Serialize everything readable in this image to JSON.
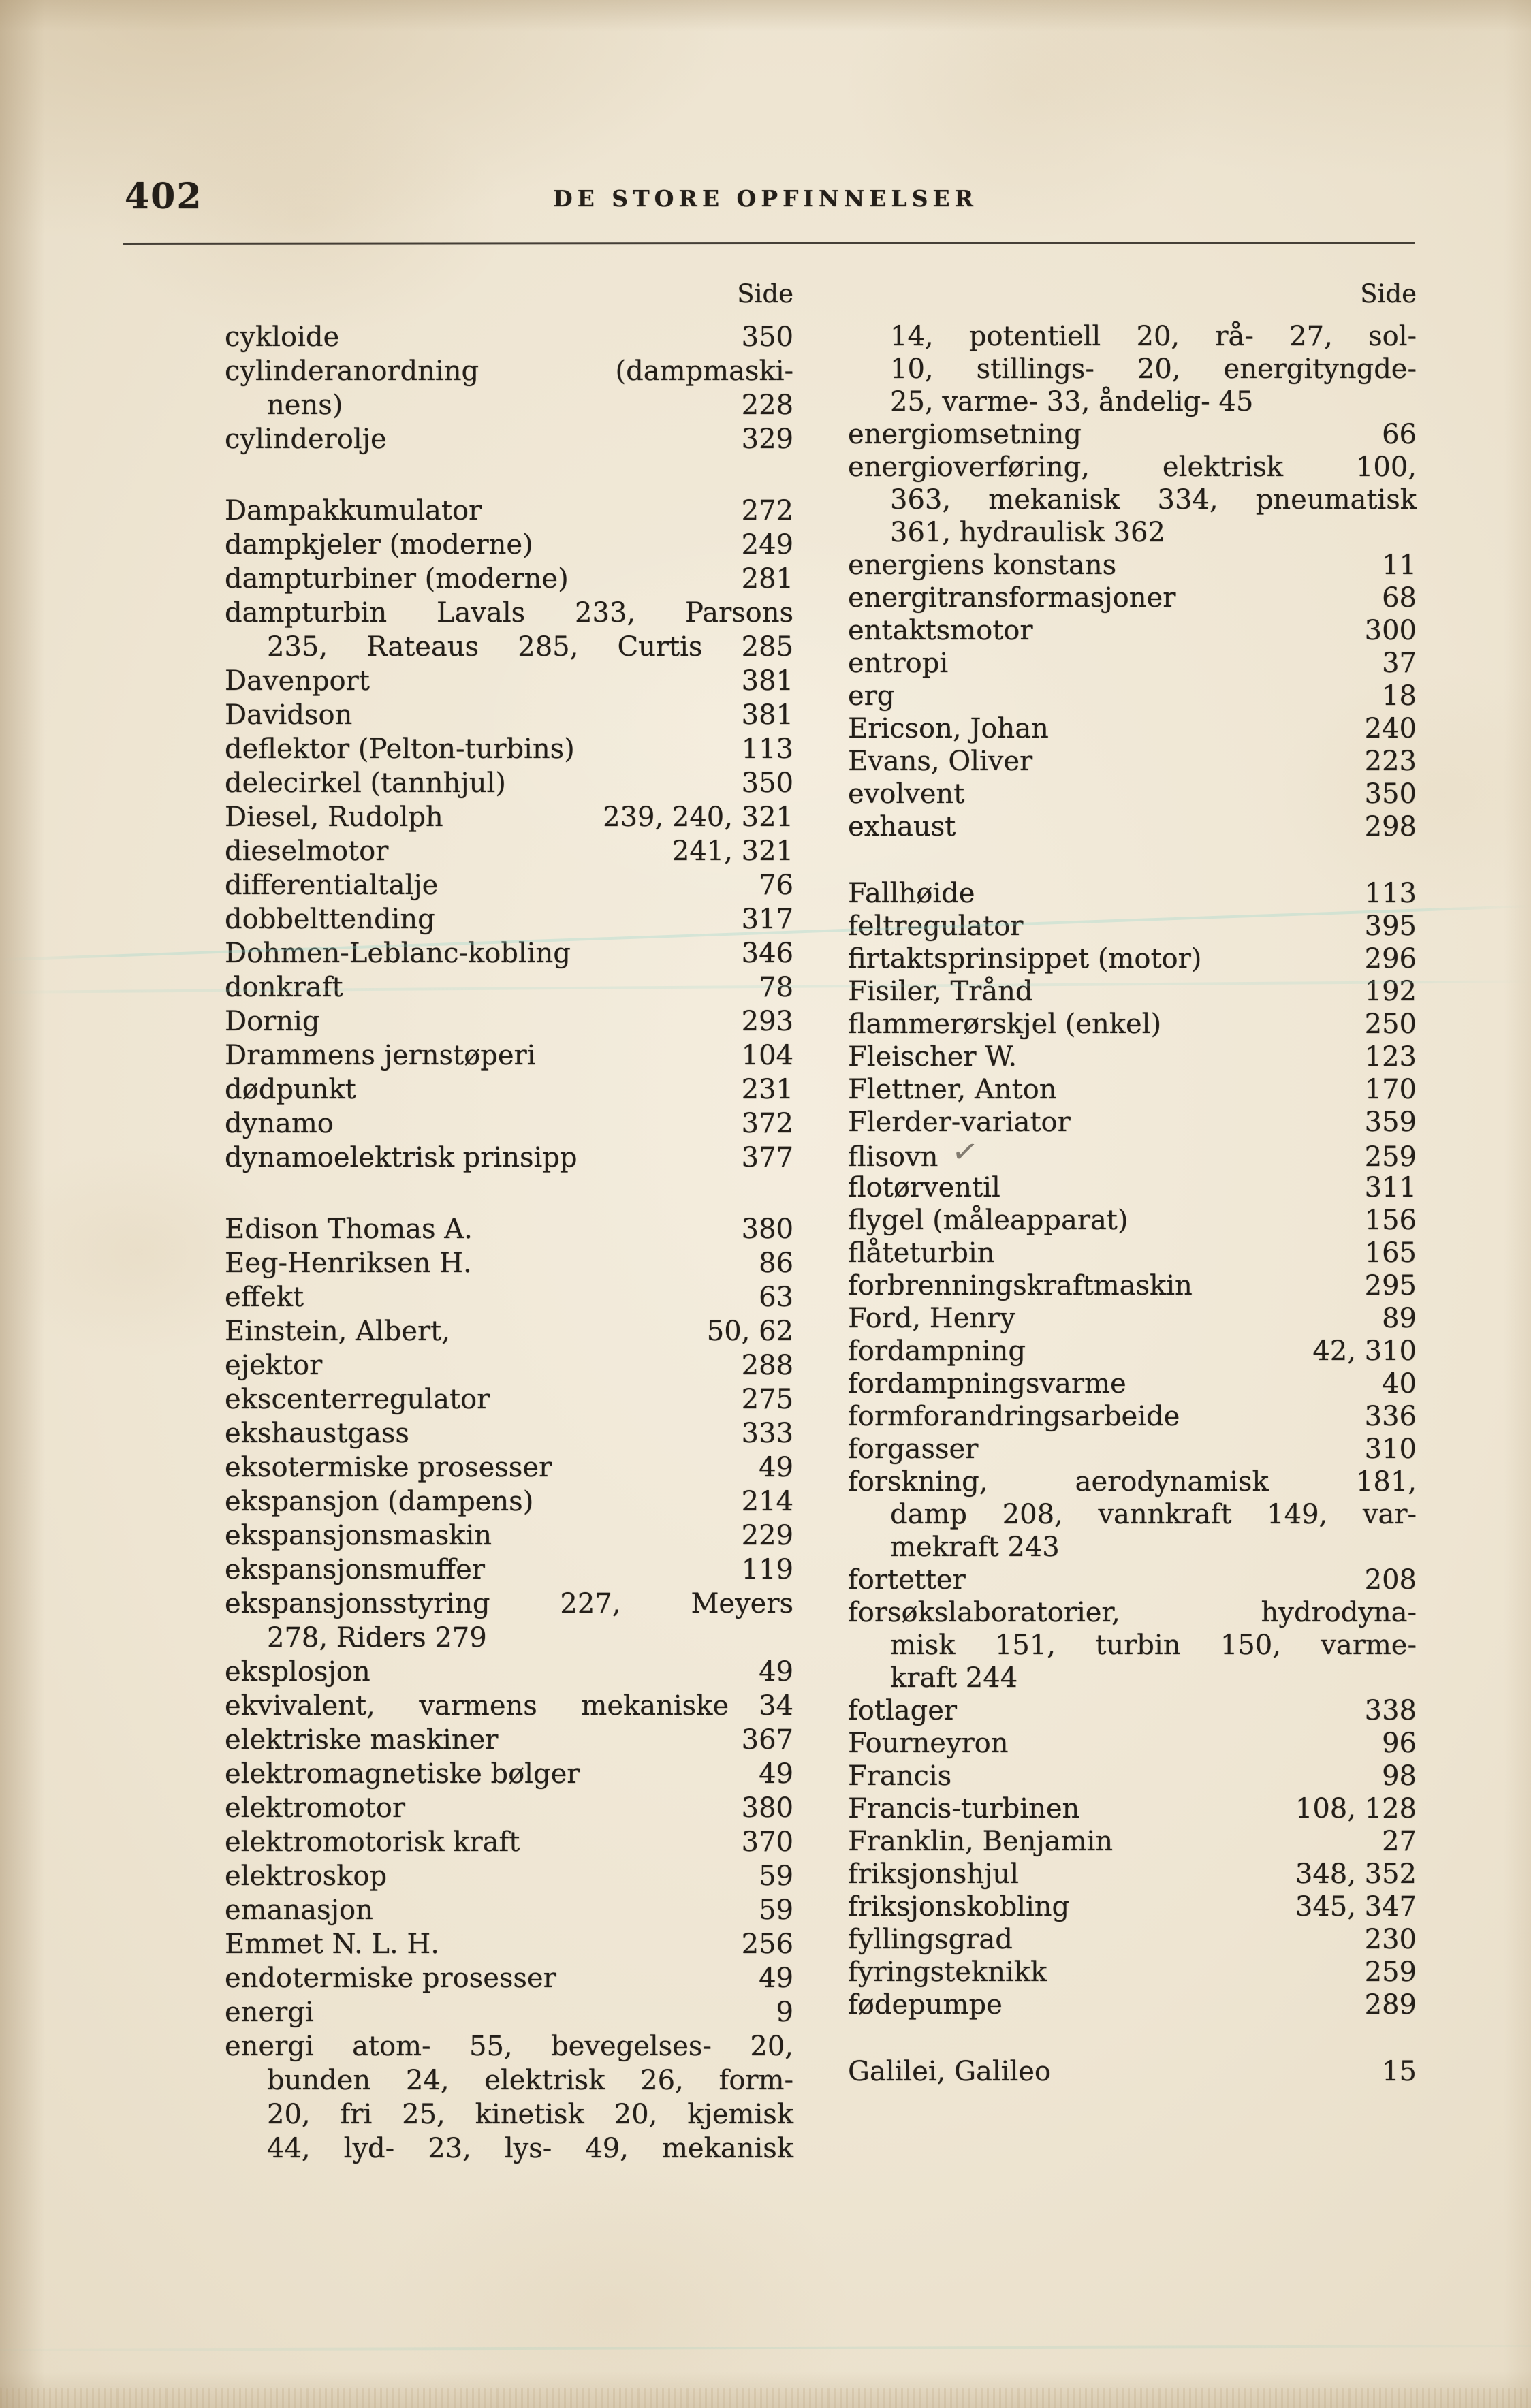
{
  "page": {
    "number": "402",
    "header": "DE STORE OPFINNELSER",
    "column_header": "Side"
  },
  "artifacts": {
    "pen_mark": "✓"
  },
  "colors": {
    "paper": "#eee5d2",
    "ink": "#241f19",
    "scan_line": "#94d6cb"
  },
  "columns": {
    "left": [
      {
        "t": "cykloide",
        "p": "350"
      },
      {
        "t": "cylinderanordning (dampmaski-",
        "f": true
      },
      {
        "t": "nens)",
        "p": "228",
        "i": true
      },
      {
        "t": "cylinderolje",
        "p": "329"
      },
      {
        "t": "Dampakkumulator",
        "p": "272",
        "g": true
      },
      {
        "t": "dampkjeler (moderne)",
        "p": "249"
      },
      {
        "t": "dampturbiner (moderne)",
        "p": "281"
      },
      {
        "t": "dampturbin Lavals 233, Parsons",
        "f": true
      },
      {
        "t": "235, Rateaus 285, Curtis 285",
        "i": true,
        "f": true
      },
      {
        "t": "Davenport",
        "p": "381"
      },
      {
        "t": "Davidson",
        "p": "381"
      },
      {
        "t": "deflektor (Pelton-turbins)",
        "p": "113"
      },
      {
        "t": "delecirkel (tannhjul)",
        "p": "350"
      },
      {
        "t": "Diesel, Rudolph",
        "p": "239, 240, 321"
      },
      {
        "t": "dieselmotor",
        "p": "241, 321"
      },
      {
        "t": "differentialtalje",
        "p": "76"
      },
      {
        "t": "dobbelttending",
        "p": "317"
      },
      {
        "t": "Dohmen-Leblanc-kobling",
        "p": "346"
      },
      {
        "t": "donkraft",
        "p": "78"
      },
      {
        "t": "Dornig",
        "p": "293"
      },
      {
        "t": "Drammens jernstøperi",
        "p": "104"
      },
      {
        "t": "dødpunkt",
        "p": "231"
      },
      {
        "t": "dynamo",
        "p": "372"
      },
      {
        "t": "dynamoelektrisk prinsipp",
        "p": "377"
      },
      {
        "t": "Edison Thomas A.",
        "p": "380",
        "g": true
      },
      {
        "t": "Eeg-Henriksen H.",
        "p": "86"
      },
      {
        "t": "effekt",
        "p": "63"
      },
      {
        "t": "Einstein, Albert,",
        "p": "50, 62"
      },
      {
        "t": "ejektor",
        "p": "288"
      },
      {
        "t": "ekscenterregulator",
        "p": "275"
      },
      {
        "t": "ekshaustgass",
        "p": "333"
      },
      {
        "t": "eksotermiske prosesser",
        "p": "49"
      },
      {
        "t": "ekspansjon (dampens)",
        "p": "214"
      },
      {
        "t": "ekspansjonsmaskin",
        "p": "229"
      },
      {
        "t": "ekspansjonsmuffer",
        "p": "119"
      },
      {
        "t": "ekspansjonsstyring 227, Meyers",
        "f": true
      },
      {
        "t": "278, Riders 279",
        "i": true
      },
      {
        "t": "eksplosjon",
        "p": "49"
      },
      {
        "t": "ekvivalent, varmens mekaniske",
        "p": "34",
        "s": true
      },
      {
        "t": "elektriske maskiner",
        "p": "367"
      },
      {
        "t": "elektromagnetiske bølger",
        "p": "49"
      },
      {
        "t": "elektromotor",
        "p": "380"
      },
      {
        "t": "elektromotorisk kraft",
        "p": "370"
      },
      {
        "t": "elektroskop",
        "p": "59"
      },
      {
        "t": "emanasjon",
        "p": "59"
      },
      {
        "t": "Emmet N. L. H.",
        "p": "256"
      },
      {
        "t": "endotermiske prosesser",
        "p": "49"
      },
      {
        "t": "energi",
        "p": "9"
      },
      {
        "t": "energi atom- 55, bevegelses- 20,",
        "f": true
      },
      {
        "t": "bunden 24, elektrisk 26, form-",
        "i": true,
        "f": true
      },
      {
        "t": "20, fri 25, kinetisk 20, kjemisk",
        "i": true,
        "f": true
      },
      {
        "t": "44, lyd- 23, lys- 49, mekanisk",
        "i": true,
        "f": true
      }
    ],
    "right": [
      {
        "t": "14, potentiell 20, rå- 27, sol-",
        "i": true,
        "f": true
      },
      {
        "t": "10, stillings- 20, energityngde-",
        "i": true,
        "f": true
      },
      {
        "t": "25, varme- 33, åndelig- 45",
        "i": true
      },
      {
        "t": "energiomsetning",
        "p": "66"
      },
      {
        "t": "energioverføring, elektrisk 100,",
        "f": true
      },
      {
        "t": "363, mekanisk 334, pneumatisk",
        "i": true,
        "f": true
      },
      {
        "t": "361, hydraulisk 362",
        "i": true
      },
      {
        "t": "energiens konstans",
        "p": "11"
      },
      {
        "t": "energitransformasjoner",
        "p": "68"
      },
      {
        "t": "entaktsmotor",
        "p": "300"
      },
      {
        "t": "entropi",
        "p": "37"
      },
      {
        "t": "erg",
        "p": "18"
      },
      {
        "t": "Ericson, Johan",
        "p": "240"
      },
      {
        "t": "Evans, Oliver",
        "p": "223"
      },
      {
        "t": "evolvent",
        "p": "350"
      },
      {
        "t": "exhaust",
        "p": "298"
      },
      {
        "t": "Fallhøide",
        "p": "113",
        "g": true
      },
      {
        "t": "feltregulator",
        "p": "395"
      },
      {
        "t": "firtaktsprinsippet (motor)",
        "p": "296"
      },
      {
        "t": "Fisiler, Trånd",
        "p": "192"
      },
      {
        "t": "flammerørskjel (enkel)",
        "p": "250"
      },
      {
        "t": "Fleischer W.",
        "p": "123"
      },
      {
        "t": "Flettner, Anton",
        "p": "170"
      },
      {
        "t": "Flerder-variator",
        "p": "359"
      },
      {
        "t": "flisovn",
        "p": "259",
        "m": true
      },
      {
        "t": "flotørventil",
        "p": "311"
      },
      {
        "t": "flygel (måleapparat)",
        "p": "156"
      },
      {
        "t": "flåteturbin",
        "p": "165"
      },
      {
        "t": "forbrenningskraftmaskin",
        "p": "295"
      },
      {
        "t": "Ford, Henry",
        "p": "89"
      },
      {
        "t": "fordampning",
        "p": "42, 310"
      },
      {
        "t": "fordampningsvarme",
        "p": "40"
      },
      {
        "t": "formforandringsarbeide",
        "p": "336"
      },
      {
        "t": "forgasser",
        "p": "310"
      },
      {
        "t": "forskning, aerodynamisk 181,",
        "f": true
      },
      {
        "t": "damp 208, vannkraft 149, var-",
        "i": true,
        "f": true
      },
      {
        "t": "mekraft 243",
        "i": true
      },
      {
        "t": "fortetter",
        "p": "208"
      },
      {
        "t": "forsøkslaboratorier, hydrodyna-",
        "f": true
      },
      {
        "t": "misk 151, turbin 150, varme-",
        "i": true,
        "f": true
      },
      {
        "t": "kraft 244",
        "i": true
      },
      {
        "t": "fotlager",
        "p": "338"
      },
      {
        "t": "Fourneyron",
        "p": "96"
      },
      {
        "t": "Francis",
        "p": "98"
      },
      {
        "t": "Francis-turbinen",
        "p": "108, 128"
      },
      {
        "t": "Franklin, Benjamin",
        "p": "27"
      },
      {
        "t": "friksjonshjul",
        "p": "348, 352"
      },
      {
        "t": "friksjonskobling",
        "p": "345, 347"
      },
      {
        "t": "fyllingsgrad",
        "p": "230"
      },
      {
        "t": "fyringsteknikk",
        "p": "259"
      },
      {
        "t": "fødepumpe",
        "p": "289"
      },
      {
        "t": "Galilei, Galileo",
        "p": "15",
        "g": true
      }
    ]
  }
}
